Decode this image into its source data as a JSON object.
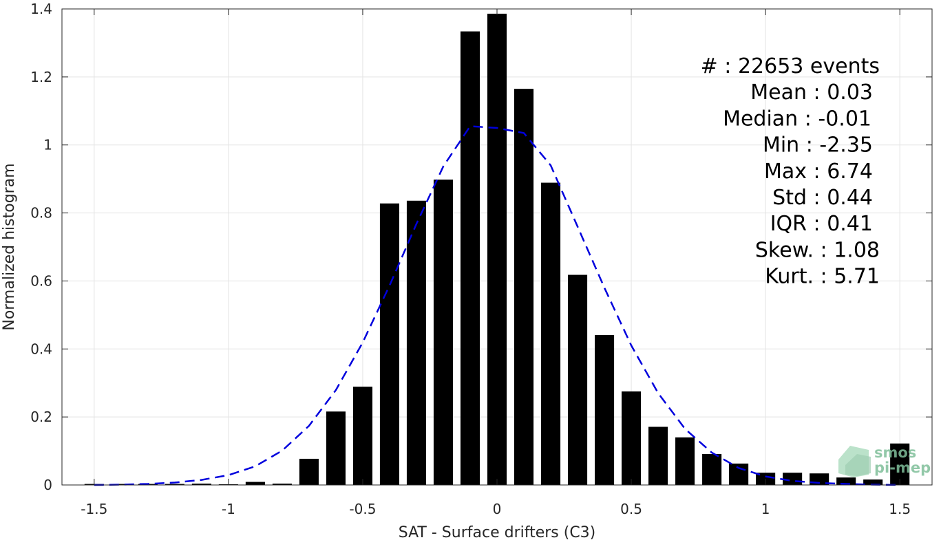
{
  "chart_data": {
    "type": "bar",
    "xlabel": "SAT - Surface drifters (C3)",
    "ylabel": "Normalized histogram",
    "xlim": [
      -1.62,
      1.62
    ],
    "ylim": [
      0,
      1.4
    ],
    "xticks": [
      -1.5,
      -1,
      -0.5,
      0,
      0.5,
      1,
      1.5
    ],
    "xtick_labels": [
      "-1.5",
      "-1",
      "-0.5",
      "0",
      "0.5",
      "1",
      "1.5"
    ],
    "yticks": [
      0,
      0.2,
      0.4,
      0.6,
      0.8,
      1,
      1.2,
      1.4
    ],
    "ytick_labels": [
      "0",
      "0.2",
      "0.4",
      "0.6",
      "0.8",
      "1",
      "1.2",
      "1.4"
    ],
    "grid": true,
    "bar_color": "#000000",
    "fit_color": "#0000dd",
    "bar_width": 0.072,
    "bars": {
      "x": [
        -1.5,
        -1.4,
        -1.3,
        -1.2,
        -1.1,
        -1.0,
        -0.9,
        -0.8,
        -0.7,
        -0.6,
        -0.5,
        -0.4,
        -0.3,
        -0.2,
        -0.1,
        0.0,
        0.1,
        0.2,
        0.3,
        0.4,
        0.5,
        0.6,
        0.7,
        0.8,
        0.9,
        1.0,
        1.1,
        1.2,
        1.3,
        1.4,
        1.5
      ],
      "values": [
        0.003,
        0.003,
        0.003,
        0.003,
        0.004,
        0.002,
        0.009,
        0.004,
        0.077,
        0.216,
        0.289,
        0.828,
        0.836,
        0.898,
        1.334,
        1.386,
        1.165,
        0.889,
        0.618,
        0.441,
        0.275,
        0.171,
        0.14,
        0.091,
        0.063,
        0.036,
        0.036,
        0.034,
        0.022,
        0.016,
        0.122
      ]
    },
    "fit_curve": {
      "name": "",
      "style": "dashed",
      "x": [
        -1.5,
        -1.4,
        -1.3,
        -1.2,
        -1.1,
        -1.0,
        -0.9,
        -0.8,
        -0.7,
        -0.6,
        -0.5,
        -0.4,
        -0.3,
        -0.2,
        -0.1,
        0.0,
        0.1,
        0.2,
        0.3,
        0.4,
        0.5,
        0.6,
        0.7,
        0.8,
        0.9,
        1.0,
        1.1,
        1.2,
        1.3,
        1.4,
        1.5
      ],
      "y": [
        0.0,
        0.001,
        0.003,
        0.007,
        0.015,
        0.029,
        0.055,
        0.101,
        0.174,
        0.279,
        0.419,
        0.587,
        0.768,
        0.937,
        1.055,
        1.05,
        1.035,
        0.94,
        0.76,
        0.58,
        0.41,
        0.27,
        0.165,
        0.095,
        0.05,
        0.025,
        0.012,
        0.006,
        0.003,
        0.001,
        0.0
      ]
    },
    "stats": [
      {
        "label": "#",
        "sep": "  : ",
        "value": "22653 events"
      },
      {
        "label": "Mean",
        "sep": " : ",
        "value": "0.03"
      },
      {
        "label": "Median",
        "sep": " : ",
        "value": "-0.01"
      },
      {
        "label": "Min",
        "sep": " : ",
        "value": "-2.35"
      },
      {
        "label": "Max",
        "sep": " : ",
        "value": "6.74"
      },
      {
        "label": "Std",
        "sep": " : ",
        "value": "0.44"
      },
      {
        "label": "IQR",
        "sep": " : ",
        "value": "0.41"
      },
      {
        "label": "Skew.",
        "sep": " : ",
        "value": "1.08"
      },
      {
        "label": "Kurt.",
        "sep": " : ",
        "value": "5.71"
      }
    ]
  },
  "logo": {
    "line1": "smos",
    "line2": "pi-mep"
  }
}
